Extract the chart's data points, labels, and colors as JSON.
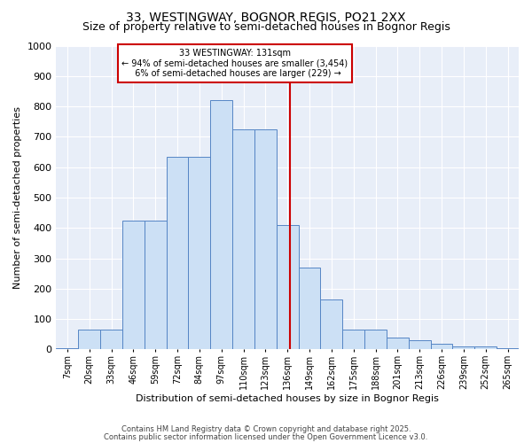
{
  "title": "33, WESTINGWAY, BOGNOR REGIS, PO21 2XX",
  "subtitle": "Size of property relative to semi-detached houses in Bognor Regis",
  "xlabel": "Distribution of semi-detached houses by size in Bognor Regis",
  "ylabel": "Number of semi-detached properties",
  "bar_labels": [
    "7sqm",
    "20sqm",
    "33sqm",
    "46sqm",
    "59sqm",
    "72sqm",
    "84sqm",
    "97sqm",
    "110sqm",
    "123sqm",
    "136sqm",
    "149sqm",
    "162sqm",
    "175sqm",
    "188sqm",
    "201sqm",
    "213sqm",
    "226sqm",
    "239sqm",
    "252sqm",
    "265sqm"
  ],
  "bar_heights": [
    5,
    65,
    65,
    425,
    425,
    635,
    635,
    820,
    725,
    725,
    410,
    270,
    165,
    65,
    65,
    40,
    30,
    18,
    10,
    10,
    5
  ],
  "property_label": "33 WESTINGWAY: 131sqm",
  "pct_smaller": 94,
  "n_smaller": 3454,
  "pct_larger": 6,
  "n_larger": 229,
  "annotation_box_color": "#cc0000",
  "bar_facecolor": "#cce0f5",
  "bar_edgecolor": "#5585c5",
  "vline_color": "#cc0000",
  "background_color": "#e8eef8",
  "grid_color": "#ffffff",
  "ylim": [
    0,
    1000
  ],
  "yticks": [
    0,
    100,
    200,
    300,
    400,
    500,
    600,
    700,
    800,
    900,
    1000
  ],
  "title_fontsize": 10,
  "subtitle_fontsize": 9,
  "axis_fontsize": 8,
  "tick_fontsize": 7,
  "footer_line1": "Contains HM Land Registry data © Crown copyright and database right 2025.",
  "footer_line2": "Contains public sector information licensed under the Open Government Licence v3.0."
}
